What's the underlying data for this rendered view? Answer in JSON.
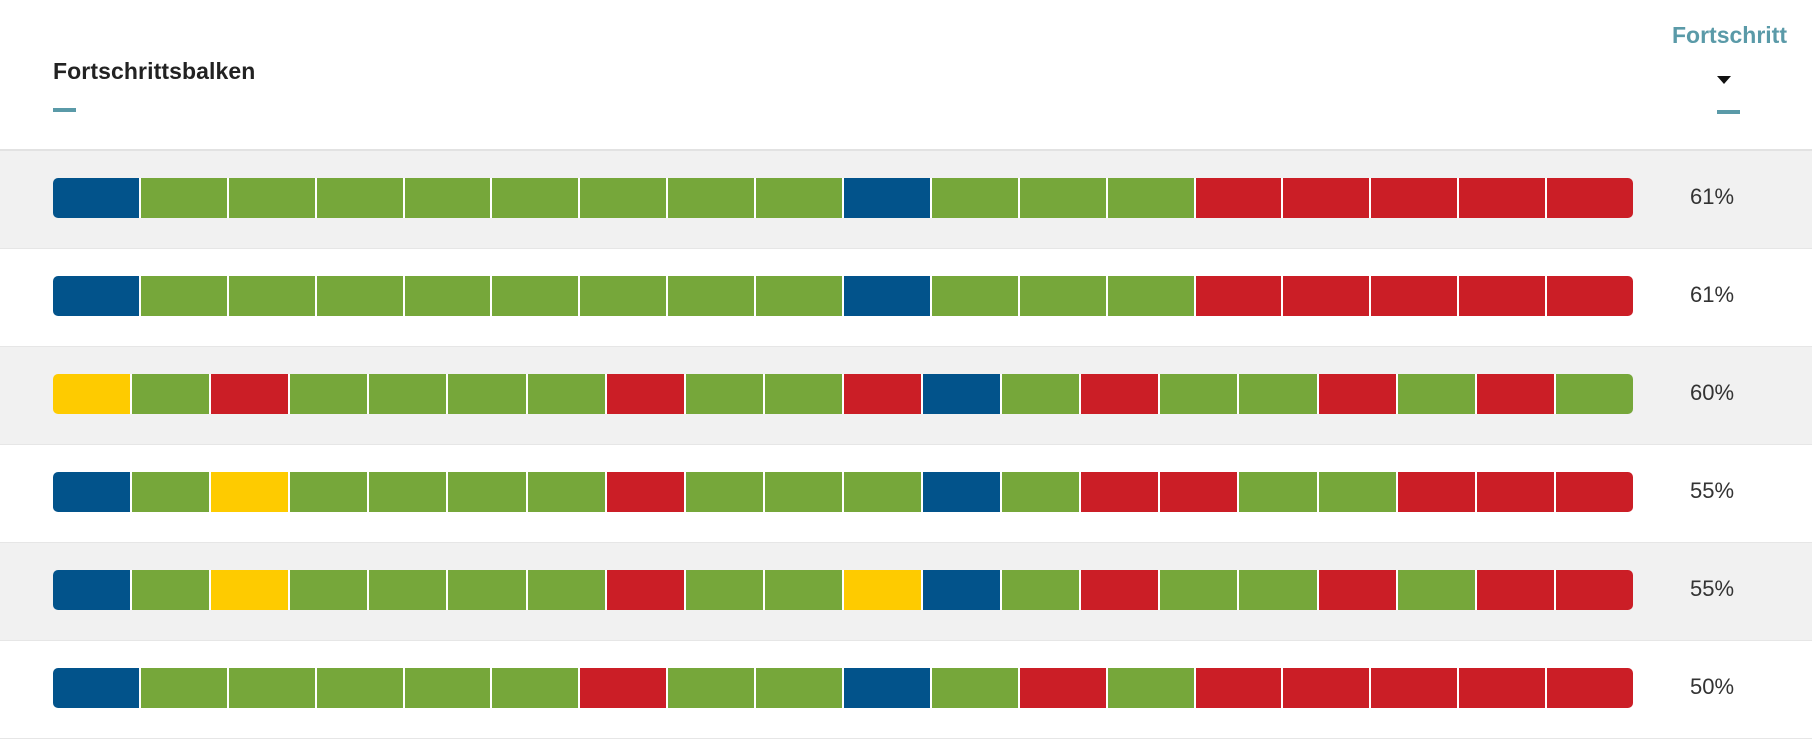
{
  "colors": {
    "blue": "#02538b",
    "green": "#76a73a",
    "red": "#cb1e26",
    "yellow": "#fecb00",
    "accent": "#5a9aa8"
  },
  "header": {
    "bars_label": "Fortschrittsbalken",
    "progress_label": "Fortschritt",
    "sort_icon": "caret-down-icon"
  },
  "rows": [
    {
      "percent": "61%",
      "segments": [
        "blue",
        "green",
        "green",
        "green",
        "green",
        "green",
        "green",
        "green",
        "green",
        "blue",
        "green",
        "green",
        "green",
        "red",
        "red",
        "red",
        "red",
        "red"
      ]
    },
    {
      "percent": "61%",
      "segments": [
        "blue",
        "green",
        "green",
        "green",
        "green",
        "green",
        "green",
        "green",
        "green",
        "blue",
        "green",
        "green",
        "green",
        "red",
        "red",
        "red",
        "red",
        "red"
      ]
    },
    {
      "percent": "60%",
      "segments": [
        "yellow",
        "green",
        "red",
        "green",
        "green",
        "green",
        "green",
        "red",
        "green",
        "green",
        "red",
        "blue",
        "green",
        "red",
        "green",
        "green",
        "red",
        "green",
        "red",
        "green"
      ]
    },
    {
      "percent": "55%",
      "segments": [
        "blue",
        "green",
        "yellow",
        "green",
        "green",
        "green",
        "green",
        "red",
        "green",
        "green",
        "green",
        "blue",
        "green",
        "red",
        "red",
        "green",
        "green",
        "red",
        "red",
        "red"
      ]
    },
    {
      "percent": "55%",
      "segments": [
        "blue",
        "green",
        "yellow",
        "green",
        "green",
        "green",
        "green",
        "red",
        "green",
        "green",
        "yellow",
        "blue",
        "green",
        "red",
        "green",
        "green",
        "red",
        "green",
        "red",
        "red"
      ]
    },
    {
      "percent": "50%",
      "segments": [
        "blue",
        "green",
        "green",
        "green",
        "green",
        "green",
        "red",
        "green",
        "green",
        "blue",
        "green",
        "red",
        "green",
        "red",
        "red",
        "red",
        "red",
        "red"
      ]
    }
  ]
}
